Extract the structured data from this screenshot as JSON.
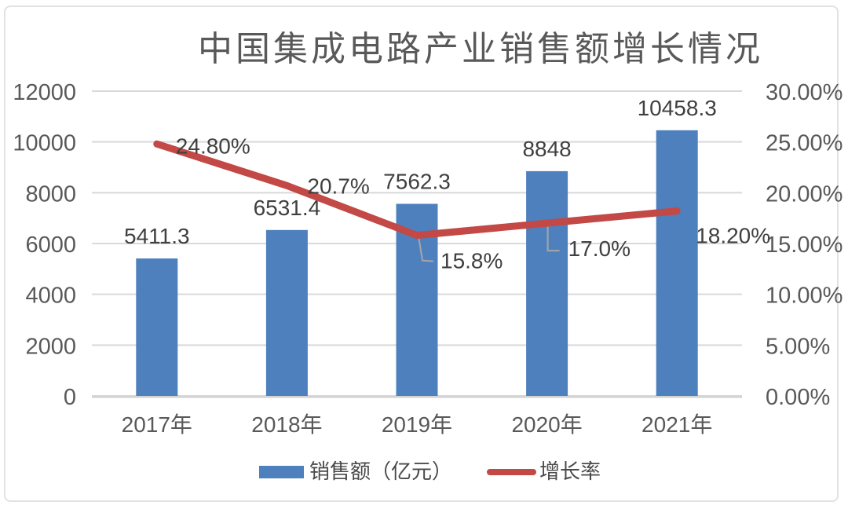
{
  "title": "中国集成电路产业销售额增长情况",
  "colors": {
    "bar_blue": "#4E80BD",
    "line_red": "#C24945",
    "gridline": "#D9D9D9",
    "axis_line": "#CFCFCF",
    "axis_text": "#595959",
    "data_label_text": "#404040",
    "leader_line": "#A6A6A6",
    "border": "#E2E2E2",
    "title_text": "#595959"
  },
  "chart_data": {
    "type": "bar+line combo, dual axis",
    "title": "中国集成电路产业销售额增长情况",
    "categories": [
      "2017年",
      "2018年",
      "2019年",
      "2020年",
      "2021年"
    ],
    "series": [
      {
        "name": "销售额（亿元）",
        "type": "bar",
        "axis": "left",
        "values": [
          5411.3,
          6531.4,
          7562.3,
          8848,
          10458.3
        ],
        "labels": [
          "5411.3",
          "6531.4",
          "7562.3",
          "8848",
          "10458.3"
        ]
      },
      {
        "name": "增长率",
        "type": "line",
        "axis": "right",
        "values": [
          24.8,
          20.7,
          15.8,
          17.0,
          18.2
        ],
        "labels": [
          "24.80%",
          "20.7%",
          "15.8%",
          "17.0%",
          "18.20%"
        ]
      }
    ],
    "left_axis": {
      "min": 0,
      "max": 12000,
      "step": 2000,
      "ticks": [
        "0",
        "2000",
        "4000",
        "6000",
        "8000",
        "10000",
        "12000"
      ]
    },
    "right_axis": {
      "min": 0,
      "max": 30,
      "step": 5,
      "ticks": [
        "0.00%",
        "5.00%",
        "10.00%",
        "15.00%",
        "20.00%",
        "25.00%",
        "30.00%"
      ]
    },
    "grid": "horizontal only",
    "legend_position": "bottom"
  }
}
